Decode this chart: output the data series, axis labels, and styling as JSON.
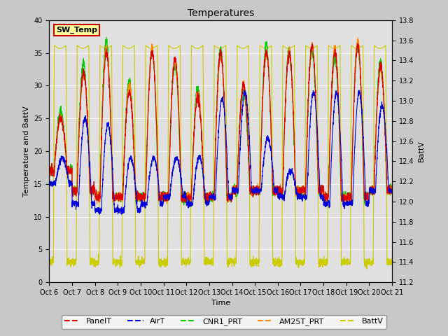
{
  "title": "Temperatures",
  "xlabel": "Time",
  "ylabel_left": "Temperature and BattV",
  "ylabel_right": "BattV",
  "xlim_days": [
    0,
    15
  ],
  "ylim_left": [
    0,
    40
  ],
  "ylim_right": [
    11.2,
    13.8
  ],
  "xtick_labels": [
    "Oct 6",
    "Oct 7",
    "Oct 8",
    "Oct 9",
    "Oct 10",
    "Oct 11",
    "Oct 12",
    "Oct 13",
    "Oct 14",
    "Oct 15",
    "Oct 16",
    "Oct 17",
    "Oct 18",
    "Oct 19",
    "Oct 20",
    "Oct 21"
  ],
  "yticks_left": [
    0,
    5,
    10,
    15,
    20,
    25,
    30,
    35,
    40
  ],
  "yticks_right": [
    11.2,
    11.4,
    11.6,
    11.8,
    12.0,
    12.2,
    12.4,
    12.6,
    12.8,
    13.0,
    13.2,
    13.4,
    13.6,
    13.8
  ],
  "legend_labels": [
    "PanelT",
    "AirT",
    "CNR1_PRT",
    "AM25T_PRT",
    "BattV"
  ],
  "legend_colors": [
    "#dd0000",
    "#0000dd",
    "#00cc00",
    "#ff8800",
    "#cccc00"
  ],
  "fig_facecolor": "#c8c8c8",
  "plot_facecolor": "#e0e0e0",
  "colors": {
    "PanelT": "#dd0000",
    "AirT": "#0000dd",
    "CNR1_PRT": "#00cc00",
    "AM25T_PRT": "#ff8800",
    "BattV": "#cccc00"
  },
  "sw_temp_label": "SW_Temp",
  "sw_temp_facecolor": "#ffff99",
  "sw_temp_edgecolor": "#cc0000"
}
